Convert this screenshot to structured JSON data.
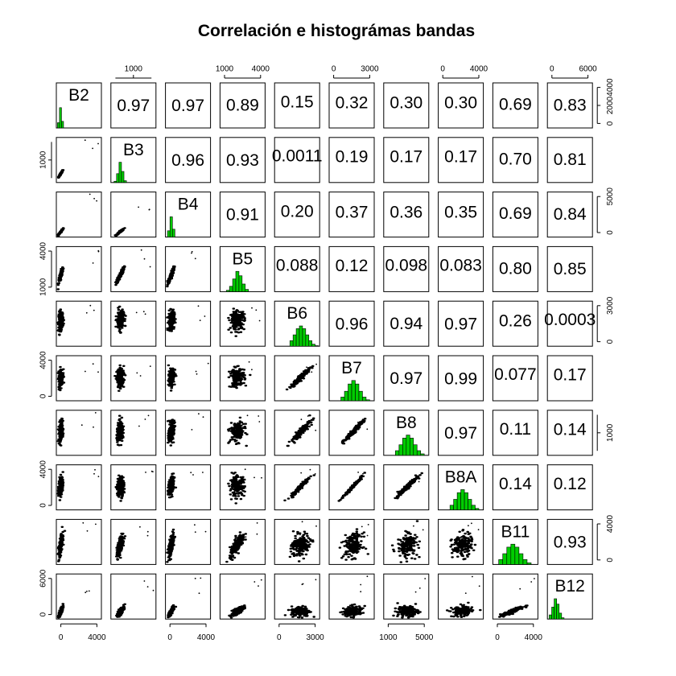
{
  "chart_data": {
    "type": "scatter",
    "title": "Correlación e histográmas bandas",
    "variables": [
      "B2",
      "B3",
      "B4",
      "B5",
      "B6",
      "B7",
      "B8",
      "B8A",
      "B11",
      "B12"
    ],
    "correlations": [
      [
        "B2",
        "B3",
        "0.97"
      ],
      [
        "B2",
        "B4",
        "0.97"
      ],
      [
        "B2",
        "B5",
        "0.89"
      ],
      [
        "B2",
        "B6",
        "0.15"
      ],
      [
        "B2",
        "B7",
        "0.32"
      ],
      [
        "B2",
        "B8",
        "0.30"
      ],
      [
        "B2",
        "B8A",
        "0.30"
      ],
      [
        "B2",
        "B11",
        "0.69"
      ],
      [
        "B2",
        "B12",
        "0.83"
      ],
      [
        "B3",
        "B4",
        "0.96"
      ],
      [
        "B3",
        "B5",
        "0.93"
      ],
      [
        "B3",
        "B6",
        "0.0011"
      ],
      [
        "B3",
        "B7",
        "0.19"
      ],
      [
        "B3",
        "B8",
        "0.17"
      ],
      [
        "B3",
        "B8A",
        "0.17"
      ],
      [
        "B3",
        "B11",
        "0.70"
      ],
      [
        "B3",
        "B12",
        "0.81"
      ],
      [
        "B4",
        "B5",
        "0.91"
      ],
      [
        "B4",
        "B6",
        "0.20"
      ],
      [
        "B4",
        "B7",
        "0.37"
      ],
      [
        "B4",
        "B8",
        "0.36"
      ],
      [
        "B4",
        "B8A",
        "0.35"
      ],
      [
        "B4",
        "B11",
        "0.69"
      ],
      [
        "B4",
        "B12",
        "0.84"
      ],
      [
        "B5",
        "B6",
        "0.088"
      ],
      [
        "B5",
        "B7",
        "0.12"
      ],
      [
        "B5",
        "B8",
        "0.098"
      ],
      [
        "B5",
        "B8A",
        "0.083"
      ],
      [
        "B5",
        "B11",
        "0.80"
      ],
      [
        "B5",
        "B12",
        "0.85"
      ],
      [
        "B6",
        "B7",
        "0.96"
      ],
      [
        "B6",
        "B8",
        "0.94"
      ],
      [
        "B6",
        "B8A",
        "0.97"
      ],
      [
        "B6",
        "B11",
        "0.26"
      ],
      [
        "B6",
        "B12",
        "0.0003"
      ],
      [
        "B7",
        "B8",
        "0.97"
      ],
      [
        "B7",
        "B8A",
        "0.99"
      ],
      [
        "B7",
        "B11",
        "0.077"
      ],
      [
        "B7",
        "B12",
        "0.17"
      ],
      [
        "B8",
        "B8A",
        "0.97"
      ],
      [
        "B8",
        "B11",
        "0.11"
      ],
      [
        "B8",
        "B12",
        "0.14"
      ],
      [
        "B8A",
        "B11",
        "0.14"
      ],
      [
        "B8A",
        "B12",
        "0.12"
      ],
      [
        "B11",
        "B12",
        "0.93"
      ]
    ],
    "axis_ticks": {
      "top": [
        {
          "col": 1,
          "labels": [
            "1000"
          ]
        },
        {
          "col": 3,
          "labels": [
            "1000",
            "4000"
          ]
        },
        {
          "col": 5,
          "labels": [
            "0",
            "3000"
          ]
        },
        {
          "col": 7,
          "labels": [
            "0",
            "4000"
          ]
        },
        {
          "col": 9,
          "labels": [
            "0",
            "6000"
          ]
        }
      ],
      "bottom": [
        {
          "col": 0,
          "labels": [
            "0",
            "4000"
          ]
        },
        {
          "col": 2,
          "labels": [
            "0",
            "4000"
          ]
        },
        {
          "col": 4,
          "labels": [
            "0",
            "3000"
          ]
        },
        {
          "col": 6,
          "labels": [
            "1000",
            "5000"
          ]
        },
        {
          "col": 8,
          "labels": [
            "0",
            "4000"
          ]
        }
      ],
      "left": [
        {
          "row": 1,
          "labels": [
            "1000"
          ]
        },
        {
          "row": 3,
          "labels": [
            "1000",
            "4000"
          ]
        },
        {
          "row": 5,
          "labels": [
            "0",
            "4000"
          ]
        },
        {
          "row": 7,
          "labels": [
            "0",
            "4000"
          ]
        },
        {
          "row": 9,
          "labels": [
            "0",
            "6000"
          ]
        }
      ],
      "right": [
        {
          "row": 0,
          "labels": [
            "0",
            "2000",
            "4000"
          ]
        },
        {
          "row": 2,
          "labels": [
            "0",
            "5000"
          ]
        },
        {
          "row": 4,
          "labels": [
            "0",
            "3000"
          ]
        },
        {
          "row": 6,
          "labels": [
            "1000"
          ]
        },
        {
          "row": 8,
          "labels": [
            "0",
            "4000"
          ]
        }
      ]
    },
    "histogram_color": "#00CC00",
    "grid": false,
    "legend": "none"
  }
}
